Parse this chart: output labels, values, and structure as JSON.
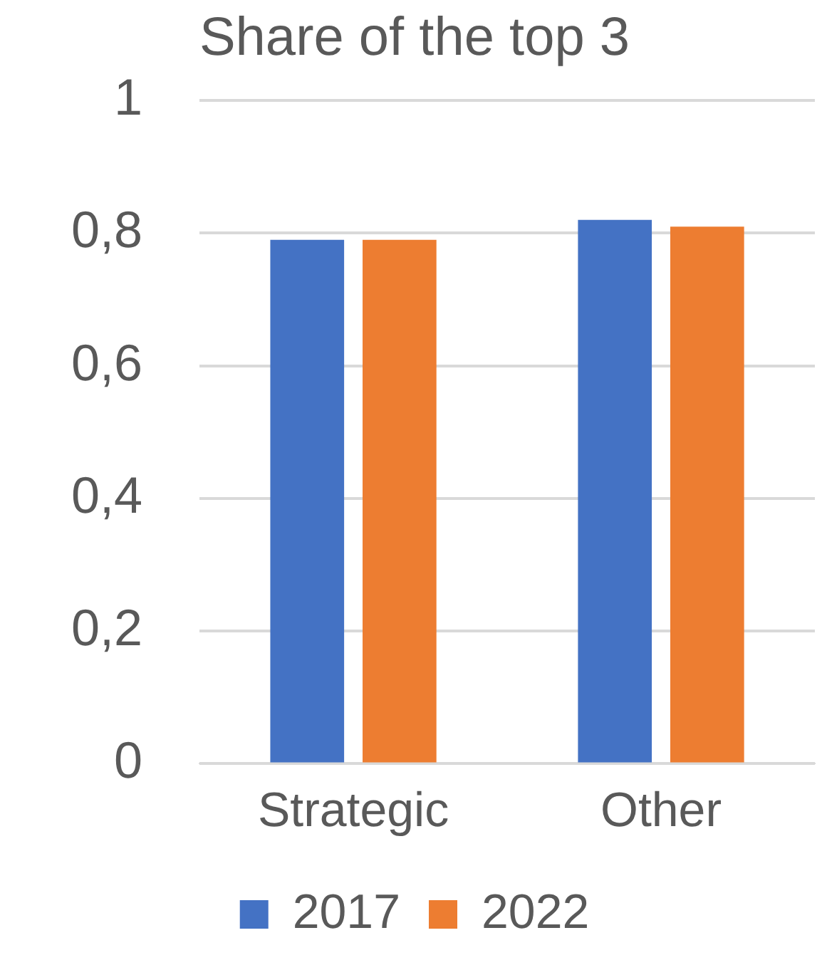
{
  "chart_data": {
    "type": "bar",
    "title": "Share of the top 3",
    "categories": [
      "Strategic",
      "Other"
    ],
    "series": [
      {
        "name": "2017",
        "color": "#4472c4",
        "values": [
          0.79,
          0.82
        ]
      },
      {
        "name": "2022",
        "color": "#ed7d31",
        "values": [
          0.79,
          0.81
        ]
      }
    ],
    "ylim": [
      0,
      1
    ],
    "yticks": [
      0,
      {
        "value": 0.2,
        "label": "0,2"
      },
      {
        "value": 0.4,
        "label": "0,4"
      },
      {
        "value": 0.6,
        "label": "0,6"
      },
      {
        "value": 0.8,
        "label": "0,8"
      },
      1
    ],
    "grid": "y",
    "legend": "bottom"
  }
}
